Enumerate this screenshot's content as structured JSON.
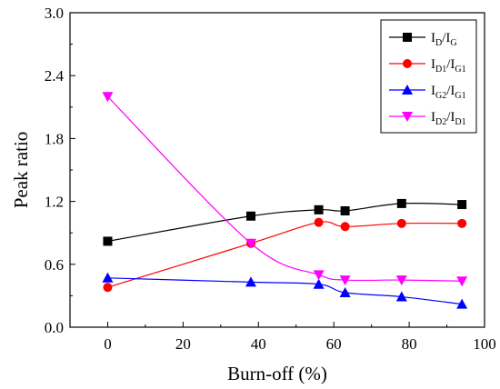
{
  "chart_data": {
    "type": "line",
    "title": "",
    "xlabel": "Burn-off (%)",
    "ylabel": "Peak ratio",
    "xlim": [
      -10,
      100
    ],
    "ylim": [
      0.0,
      3.0
    ],
    "xticks": [
      "0",
      "20",
      "40",
      "60",
      "80",
      "100"
    ],
    "yticks": [
      "0.0",
      "0.6",
      "1.2",
      "1.8",
      "2.4",
      "3.0"
    ],
    "grid": false,
    "legend_position": "top-right",
    "series": [
      {
        "name": "ID/IG",
        "label_main": [
          "I",
          "/I"
        ],
        "label_sub": [
          "D",
          "G"
        ],
        "color": "#000000",
        "marker": "square",
        "x": [
          0,
          38,
          56,
          63,
          78,
          94
        ],
        "y": [
          0.82,
          1.06,
          1.12,
          1.11,
          1.18,
          1.17
        ]
      },
      {
        "name": "ID1/IG1",
        "label_main": [
          "I",
          "/I"
        ],
        "label_sub": [
          "D1",
          "G1"
        ],
        "color": "#ff0000",
        "marker": "circle",
        "x": [
          0,
          38,
          56,
          63,
          78,
          94
        ],
        "y": [
          0.38,
          0.8,
          1.0,
          0.96,
          0.99,
          0.99
        ]
      },
      {
        "name": "IG2/IG1",
        "label_main": [
          "I",
          "/I"
        ],
        "label_sub": [
          "G2",
          "G1"
        ],
        "color": "#0000ff",
        "marker": "triangle-up",
        "x": [
          0,
          38,
          56,
          63,
          78,
          94
        ],
        "y": [
          0.47,
          0.43,
          0.41,
          0.33,
          0.29,
          0.22
        ]
      },
      {
        "name": "ID2/ID1",
        "label_main": [
          "I",
          "/I"
        ],
        "label_sub": [
          "D2",
          "D1"
        ],
        "color": "#ff00ff",
        "marker": "triangle-down",
        "x": [
          0,
          38,
          56,
          63,
          78,
          94
        ],
        "y": [
          2.2,
          0.8,
          0.5,
          0.45,
          0.45,
          0.44
        ]
      }
    ]
  }
}
